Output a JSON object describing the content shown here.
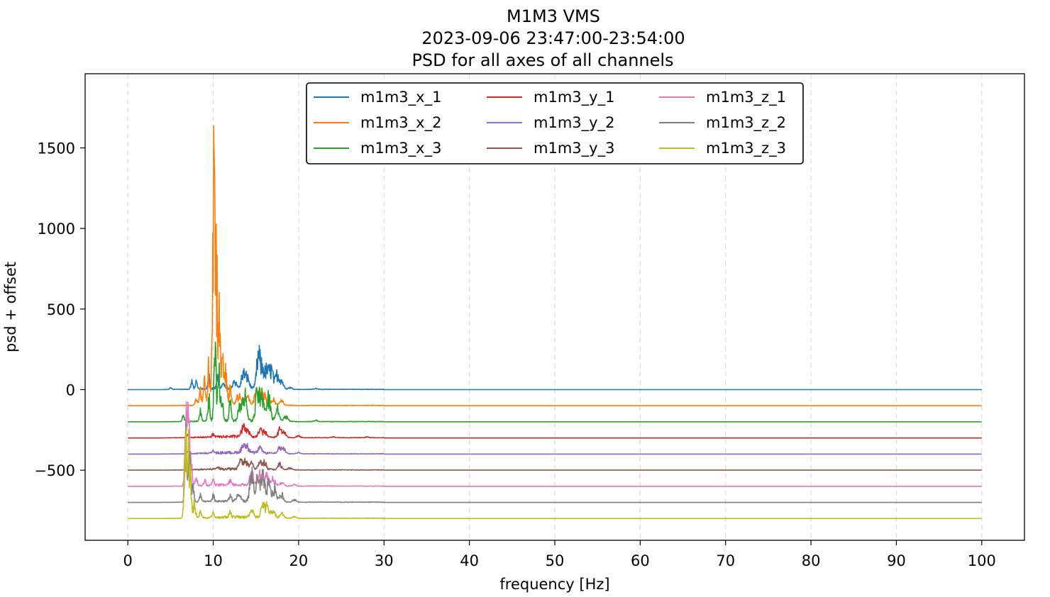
{
  "chart_data": {
    "type": "line",
    "title": [
      "M1M3 VMS",
      "2023-09-06 23:47:00-23:54:00",
      "PSD for all axes of all channels"
    ],
    "xlabel": "frequency [Hz]",
    "ylabel": "psd + offset",
    "xlim": [
      -5,
      105
    ],
    "ylim": [
      -935,
      1960
    ],
    "xticks": [
      0,
      10,
      20,
      30,
      40,
      50,
      60,
      70,
      80,
      90,
      100
    ],
    "yticks": [
      -500,
      0,
      500,
      1000,
      1500
    ],
    "ytick_labels": [
      "−500",
      "0",
      "500",
      "1000",
      "1500"
    ],
    "grid": "vertical dashed at x ticks",
    "legend": {
      "placement": "top-center",
      "columns": 3
    },
    "series": [
      {
        "name": "m1m3_x_1",
        "color": "#1f77b4",
        "offset": 0,
        "peaks": [
          [
            5,
            15
          ],
          [
            7.5,
            55
          ],
          [
            8,
            50
          ],
          [
            9.5,
            100
          ],
          [
            10.5,
            90
          ],
          [
            11.2,
            60
          ],
          [
            12.5,
            60
          ],
          [
            13.5,
            115
          ],
          [
            14,
            85
          ],
          [
            15.3,
            260
          ],
          [
            15.8,
            145
          ],
          [
            16.3,
            135
          ],
          [
            16.8,
            150
          ],
          [
            17.5,
            120
          ],
          [
            18,
            70
          ],
          [
            19,
            15
          ],
          [
            22,
            8
          ]
        ]
      },
      {
        "name": "m1m3_x_2",
        "color": "#ff7f0e",
        "offset": -100,
        "peaks": [
          [
            8,
            60
          ],
          [
            8.5,
            120
          ],
          [
            9,
            200
          ],
          [
            9.5,
            300
          ],
          [
            9.9,
            450
          ],
          [
            10.1,
            1920
          ],
          [
            10.4,
            1000
          ],
          [
            10.7,
            650
          ],
          [
            11.1,
            500
          ],
          [
            11.5,
            280
          ],
          [
            12,
            130
          ],
          [
            13,
            80
          ],
          [
            14,
            60
          ],
          [
            15,
            80
          ],
          [
            15.5,
            90
          ],
          [
            16,
            70
          ],
          [
            17,
            50
          ],
          [
            18,
            40
          ]
        ]
      },
      {
        "name": "m1m3_x_3",
        "color": "#2ca02c",
        "offset": -200,
        "peaks": [
          [
            6.5,
            40
          ],
          [
            8.5,
            80
          ],
          [
            9.5,
            170
          ],
          [
            10.2,
            560
          ],
          [
            10.6,
            450
          ],
          [
            11,
            240
          ],
          [
            12,
            160
          ],
          [
            13.2,
            150
          ],
          [
            13.7,
            190
          ],
          [
            15.2,
            250
          ],
          [
            15.8,
            200
          ],
          [
            16.5,
            180
          ],
          [
            17.5,
            100
          ],
          [
            18.5,
            50
          ],
          [
            22,
            10
          ]
        ]
      },
      {
        "name": "m1m3_y_1",
        "color": "#d62728",
        "offset": -300,
        "peaks": [
          [
            7,
            20
          ],
          [
            10,
            25
          ],
          [
            13.5,
            70
          ],
          [
            14,
            50
          ],
          [
            15.5,
            50
          ],
          [
            16,
            45
          ],
          [
            17.8,
            60
          ],
          [
            18.3,
            40
          ],
          [
            20,
            15
          ],
          [
            24,
            8
          ],
          [
            28,
            6
          ]
        ]
      },
      {
        "name": "m1m3_y_2",
        "color": "#9467bd",
        "offset": -400,
        "peaks": [
          [
            7,
            20
          ],
          [
            10,
            20
          ],
          [
            13.5,
            65
          ],
          [
            14,
            50
          ],
          [
            15.5,
            40
          ],
          [
            17.8,
            50
          ],
          [
            18.3,
            35
          ],
          [
            20,
            10
          ]
        ]
      },
      {
        "name": "m1m3_y_3",
        "color": "#8c564b",
        "offset": -500,
        "peaks": [
          [
            7,
            25
          ],
          [
            10.5,
            25
          ],
          [
            13.2,
            65
          ],
          [
            13.8,
            70
          ],
          [
            14.5,
            45
          ],
          [
            15.5,
            50
          ],
          [
            16,
            60
          ],
          [
            17.8,
            45
          ],
          [
            19,
            15
          ]
        ]
      },
      {
        "name": "m1m3_z_1",
        "color": "#e377c2",
        "offset": -600,
        "peaks": [
          [
            6.8,
            580
          ],
          [
            7.1,
            500
          ],
          [
            7.4,
            220
          ],
          [
            8,
            70
          ],
          [
            9,
            40
          ],
          [
            10,
            35
          ],
          [
            12,
            40
          ],
          [
            14.5,
            100
          ],
          [
            15.5,
            100
          ],
          [
            16.2,
            90
          ],
          [
            17,
            60
          ],
          [
            18,
            30
          ],
          [
            19.5,
            15
          ]
        ]
      },
      {
        "name": "m1m3_z_2",
        "color": "#7f7f7f",
        "offset": -700,
        "peaks": [
          [
            6.8,
            460
          ],
          [
            7.2,
            400
          ],
          [
            7.6,
            160
          ],
          [
            8.5,
            60
          ],
          [
            10,
            45
          ],
          [
            12,
            50
          ],
          [
            13,
            50
          ],
          [
            14.5,
            210
          ],
          [
            15.2,
            170
          ],
          [
            15.8,
            190
          ],
          [
            16.5,
            140
          ],
          [
            17.2,
            100
          ],
          [
            18,
            60
          ],
          [
            19.5,
            20
          ]
        ]
      },
      {
        "name": "m1m3_z_3",
        "color": "#bcbd22",
        "offset": -800,
        "peaks": [
          [
            6.7,
            640
          ],
          [
            7,
            600
          ],
          [
            7.3,
            380
          ],
          [
            7.8,
            140
          ],
          [
            8.5,
            50
          ],
          [
            10,
            40
          ],
          [
            12,
            40
          ],
          [
            14.5,
            60
          ],
          [
            15.8,
            100
          ],
          [
            16.3,
            90
          ],
          [
            17,
            60
          ],
          [
            18,
            35
          ],
          [
            19.5,
            15
          ]
        ]
      }
    ]
  }
}
